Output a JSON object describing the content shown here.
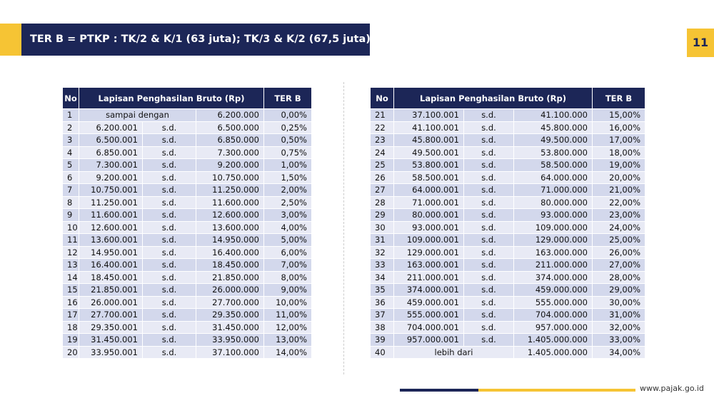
{
  "header": {
    "title": "TER B = PTKP : TK/2 & K/1 (63 juta); TK/3 & K/2 (67,5 juta)",
    "page_number": "11"
  },
  "tables": [
    {
      "columns": [
        "No",
        "Lapisan Penghasilan Bruto (Rp)",
        "TER B"
      ],
      "rows": [
        [
          "1",
          "sampai dengan",
          "6.200.000",
          "0,00%"
        ],
        [
          "2",
          "6.200.001",
          "s.d.",
          "6.500.000",
          "0,25%"
        ],
        [
          "3",
          "6.500.001",
          "s.d.",
          "6.850.000",
          "0,50%"
        ],
        [
          "4",
          "6.850.001",
          "s.d.",
          "7.300.000",
          "0,75%"
        ],
        [
          "5",
          "7.300.001",
          "s.d.",
          "9.200.000",
          "1,00%"
        ],
        [
          "6",
          "9.200.001",
          "s.d.",
          "10.750.000",
          "1,50%"
        ],
        [
          "7",
          "10.750.001",
          "s.d.",
          "11.250.000",
          "2,00%"
        ],
        [
          "8",
          "11.250.001",
          "s.d.",
          "11.600.000",
          "2,50%"
        ],
        [
          "9",
          "11.600.001",
          "s.d.",
          "12.600.000",
          "3,00%"
        ],
        [
          "10",
          "12.600.001",
          "s.d.",
          "13.600.000",
          "4,00%"
        ],
        [
          "11",
          "13.600.001",
          "s.d.",
          "14.950.000",
          "5,00%"
        ],
        [
          "12",
          "14.950.001",
          "s.d.",
          "16.400.000",
          "6,00%"
        ],
        [
          "13",
          "16.400.001",
          "s.d.",
          "18.450.000",
          "7,00%"
        ],
        [
          "14",
          "18.450.001",
          "s.d.",
          "21.850.000",
          "8,00%"
        ],
        [
          "15",
          "21.850.001",
          "s.d.",
          "26.000.000",
          "9,00%"
        ],
        [
          "16",
          "26.000.001",
          "s.d.",
          "27.700.000",
          "10,00%"
        ],
        [
          "17",
          "27.700.001",
          "s.d.",
          "29.350.000",
          "11,00%"
        ],
        [
          "18",
          "29.350.001",
          "s.d.",
          "31.450.000",
          "12,00%"
        ],
        [
          "19",
          "31.450.001",
          "s.d.",
          "33.950.000",
          "13,00%"
        ],
        [
          "20",
          "33.950.001",
          "s.d.",
          "37.100.000",
          "14,00%"
        ]
      ]
    },
    {
      "columns": [
        "No",
        "Lapisan Penghasilan Bruto (Rp)",
        "TER B"
      ],
      "rows": [
        [
          "21",
          "37.100.001",
          "s.d.",
          "41.100.000",
          "15,00%"
        ],
        [
          "22",
          "41.100.001",
          "s.d.",
          "45.800.000",
          "16,00%"
        ],
        [
          "23",
          "45.800.001",
          "s.d.",
          "49.500.000",
          "17,00%"
        ],
        [
          "24",
          "49.500.001",
          "s.d.",
          "53.800.000",
          "18,00%"
        ],
        [
          "25",
          "53.800.001",
          "s.d.",
          "58.500.000",
          "19,00%"
        ],
        [
          "26",
          "58.500.001",
          "s.d.",
          "64.000.000",
          "20,00%"
        ],
        [
          "27",
          "64.000.001",
          "s.d.",
          "71.000.000",
          "21,00%"
        ],
        [
          "28",
          "71.000.001",
          "s.d.",
          "80.000.000",
          "22,00%"
        ],
        [
          "29",
          "80.000.001",
          "s.d.",
          "93.000.000",
          "23,00%"
        ],
        [
          "30",
          "93.000.001",
          "s.d.",
          "109.000.000",
          "24,00%"
        ],
        [
          "31",
          "109.000.001",
          "s.d.",
          "129.000.000",
          "25,00%"
        ],
        [
          "32",
          "129.000.001",
          "s.d.",
          "163.000.000",
          "26,00%"
        ],
        [
          "33",
          "163.000.001",
          "s.d.",
          "211.000.000",
          "27,00%"
        ],
        [
          "34",
          "211.000.001",
          "s.d.",
          "374.000.000",
          "28,00%"
        ],
        [
          "35",
          "374.000.001",
          "s.d.",
          "459.000.000",
          "29,00%"
        ],
        [
          "36",
          "459.000.001",
          "s.d.",
          "555.000.000",
          "30,00%"
        ],
        [
          "37",
          "555.000.001",
          "s.d.",
          "704.000.000",
          "31,00%"
        ],
        [
          "38",
          "704.000.001",
          "s.d.",
          "957.000.000",
          "32,00%"
        ],
        [
          "39",
          "957.000.001",
          "s.d.",
          "1.405.000.000",
          "33,00%"
        ],
        [
          "40",
          "lebih dari",
          "1.405.000.000",
          "34,00%"
        ]
      ]
    }
  ],
  "footer": {
    "url": "www.pajak.go.id"
  }
}
